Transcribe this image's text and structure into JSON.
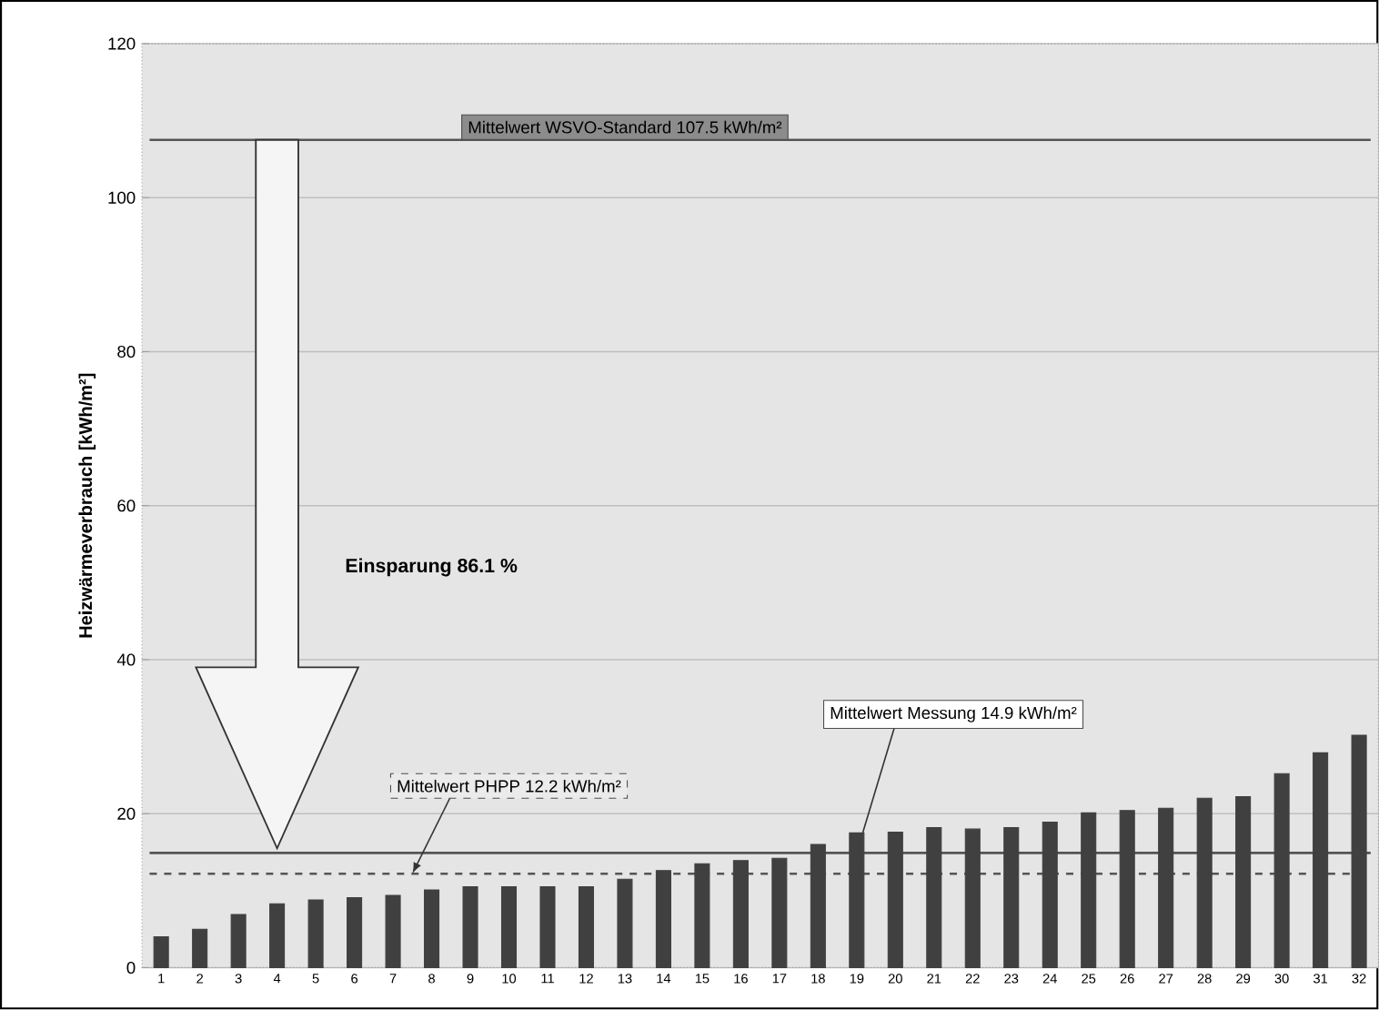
{
  "chart_data": {
    "type": "bar",
    "ylabel": "Heizwärmeverbrauch [kWh/m²]",
    "categories": [
      "1",
      "2",
      "3",
      "4",
      "5",
      "6",
      "7",
      "8",
      "9",
      "10",
      "11",
      "12",
      "13",
      "14",
      "15",
      "16",
      "17",
      "18",
      "19",
      "20",
      "21",
      "22",
      "23",
      "24",
      "25",
      "26",
      "27",
      "28",
      "29",
      "30",
      "31",
      "32"
    ],
    "values": [
      4.0,
      5.0,
      6.9,
      8.3,
      8.8,
      9.1,
      9.4,
      10.1,
      10.5,
      10.5,
      10.5,
      10.5,
      11.5,
      12.6,
      13.5,
      13.9,
      14.2,
      16.0,
      17.5,
      17.6,
      18.2,
      18.0,
      18.2,
      18.9,
      20.1,
      20.4,
      20.7,
      22.0,
      22.2,
      25.2,
      27.9,
      30.2
    ],
    "color": "#404040",
    "ylim": [
      0,
      120
    ],
    "yticks": [
      0,
      20,
      40,
      60,
      80,
      100,
      120
    ],
    "grid": "y",
    "ref_lines": [
      {
        "axis": "y",
        "value": 107.5,
        "label": "Mittelwert WSVO-Standard 107.5 kWh/m²",
        "color": "#555555",
        "line_style": "solid"
      },
      {
        "axis": "y",
        "value": 14.9,
        "label": "Mittelwert Messung 14.9 kWh/m²",
        "color": "#555555",
        "line_style": "solid"
      },
      {
        "axis": "y",
        "value": 12.2,
        "label": "Mittelwert PHPP 12.2 kWh/m²",
        "color": "#555555",
        "line_style": "dashed"
      }
    ],
    "annotations": [
      "Einsparung 86.1 %"
    ]
  }
}
